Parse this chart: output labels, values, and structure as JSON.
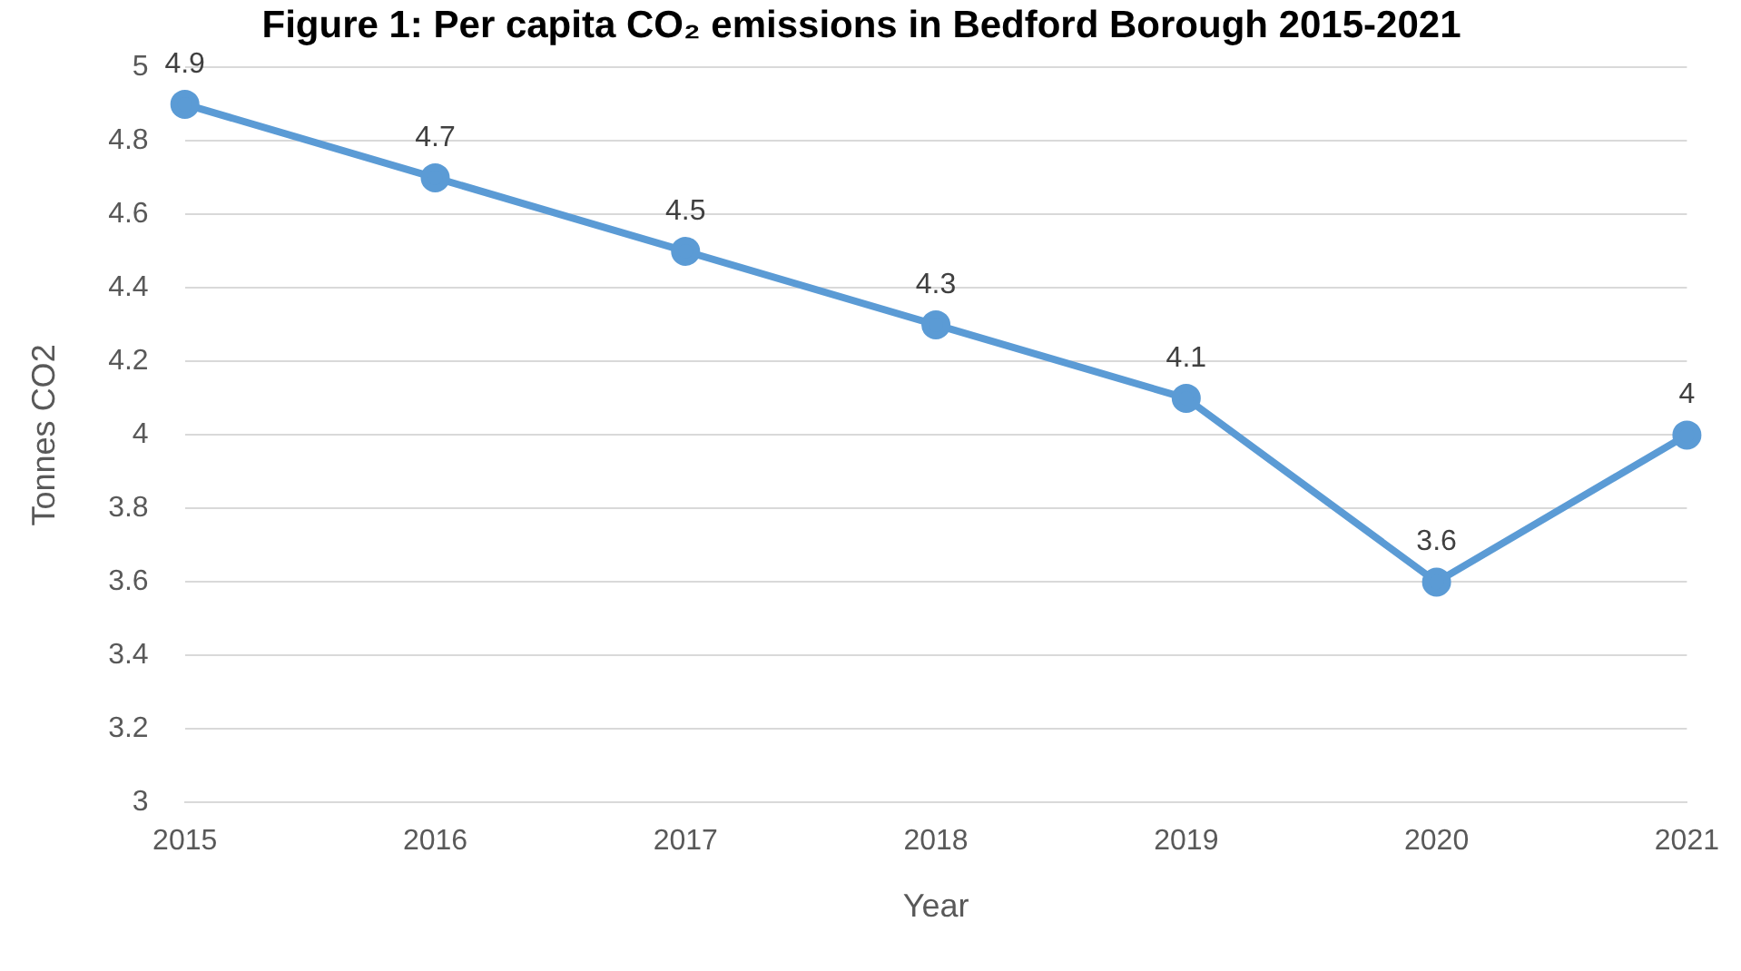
{
  "chart_data": {
    "type": "line",
    "title": "Figure 1: Per capita CO₂ emissions in Bedford Borough 2015-2021",
    "xlabel": "Year",
    "ylabel": "Tonnes CO2",
    "categories": [
      "2015",
      "2016",
      "2017",
      "2018",
      "2019",
      "2020",
      "2021"
    ],
    "series": [
      {
        "color": "#5b9bd5",
        "values": [
          4.9,
          4.7,
          4.5,
          4.3,
          4.1,
          3.6,
          4
        ]
      }
    ],
    "ylim": [
      3,
      5
    ],
    "yticks": [
      3,
      3.2,
      3.4,
      3.6,
      3.8,
      4,
      4.2,
      4.4,
      4.6,
      4.8,
      5
    ],
    "grid": "y",
    "marker": "circle",
    "line_style": "solid",
    "data_labels": true
  }
}
